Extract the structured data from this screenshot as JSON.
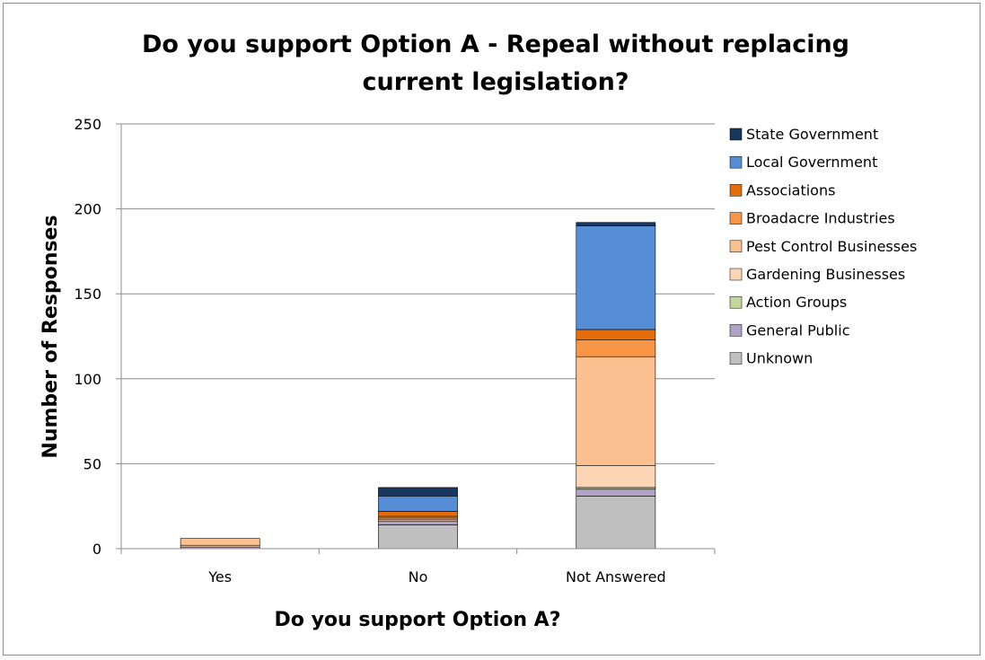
{
  "chart_data": {
    "type": "bar",
    "stacked": true,
    "title": "Do you support Option A - Repeal without replacing current legislation?",
    "title_lines": [
      "Do you support Option A - Repeal without replacing",
      "current legislation?"
    ],
    "xlabel": "Do you support Option A?",
    "ylabel": "Number of Responses",
    "categories": [
      "Yes",
      "No",
      "Not Answered"
    ],
    "ylim": [
      0,
      250
    ],
    "yticks": [
      0,
      50,
      100,
      150,
      200,
      250
    ],
    "grid": true,
    "legend_position": "right",
    "series": [
      {
        "name": "Unknown",
        "color": "#bfbfbf",
        "values": [
          0,
          14,
          31
        ]
      },
      {
        "name": "General Public",
        "color": "#b3a2c7",
        "values": [
          1,
          2,
          4
        ]
      },
      {
        "name": "Action Groups",
        "color": "#c3d69b",
        "values": [
          0,
          0,
          1
        ]
      },
      {
        "name": "Gardening Businesses",
        "color": "#fcd5b5",
        "values": [
          1,
          1,
          13
        ]
      },
      {
        "name": "Pest Control Businesses",
        "color": "#fac090",
        "values": [
          4,
          1,
          64
        ]
      },
      {
        "name": "Broadacre Industries",
        "color": "#f79646",
        "values": [
          0,
          1,
          10
        ]
      },
      {
        "name": "Associations",
        "color": "#e46c0a",
        "values": [
          0,
          3,
          6
        ]
      },
      {
        "name": "Local Government",
        "color": "#558ed5",
        "values": [
          0,
          9,
          61
        ]
      },
      {
        "name": "State Government",
        "color": "#17375e",
        "values": [
          0,
          5,
          2
        ]
      }
    ],
    "legend_order": [
      "State Government",
      "Local Government",
      "Associations",
      "Broadacre Industries",
      "Pest Control Businesses",
      "Gardening Businesses",
      "Action Groups",
      "General Public",
      "Unknown"
    ]
  }
}
